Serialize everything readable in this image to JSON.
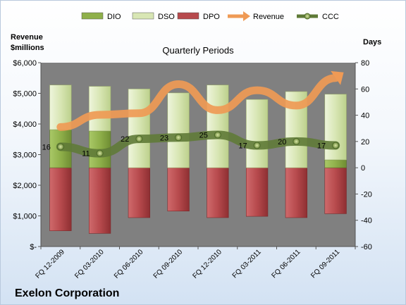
{
  "company": "Exelon Corporation",
  "chart_data": {
    "type": "bar",
    "title": "Quarterly Periods",
    "ylabel_left": "Revenue $millions",
    "ylabel_right": "Days",
    "categories": [
      "FQ 12-2009",
      "FQ 03-2010",
      "FQ 06-2010",
      "FQ 09-2010",
      "FQ 12-2010",
      "FQ 03-2011",
      "FQ 06-2011",
      "FQ 09-2011"
    ],
    "ylim_left": [
      0,
      6000
    ],
    "ylim_right": [
      -60,
      80
    ],
    "left_ticks": [
      "$-",
      "$1,000",
      "$2,000",
      "$3,000",
      "$4,000",
      "$5,000",
      "$6,000"
    ],
    "right_ticks": [
      "-60",
      "-40",
      "-20",
      "0",
      "20",
      "40",
      "60",
      "80"
    ],
    "legend_position": "top",
    "legend": [
      {
        "name": "DIO",
        "kind": "bar",
        "color": "#8fb04a"
      },
      {
        "name": "DSO",
        "kind": "bar",
        "color": "#d8e6b4"
      },
      {
        "name": "DPO",
        "kind": "bar",
        "color": "#b74a4d"
      },
      {
        "name": "Revenue",
        "kind": "arrow",
        "color": "#ef9a55"
      },
      {
        "name": "CCC",
        "kind": "line-marker",
        "color": "#5f7a37"
      }
    ],
    "series": [
      {
        "name": "DIO",
        "axis": "right",
        "values": [
          29,
          28,
          0,
          0,
          0,
          0,
          0,
          6
        ]
      },
      {
        "name": "DSO",
        "axis": "right",
        "values": [
          34,
          34,
          60,
          57,
          63,
          52,
          58,
          50
        ]
      },
      {
        "name": "DPO",
        "axis": "right",
        "values": [
          -48,
          -50,
          -38,
          -33,
          -38,
          -37,
          -38,
          -35
        ]
      },
      {
        "name": "Revenue",
        "axis": "left",
        "values": [
          3900,
          4300,
          4350,
          5300,
          4450,
          5100,
          4600,
          5500
        ]
      },
      {
        "name": "CCC",
        "axis": "right",
        "values": [
          16,
          11,
          22,
          23,
          25,
          17,
          20,
          17
        ]
      }
    ],
    "data_labels": [
      "16",
      "11",
      "22",
      "23",
      "25",
      "17",
      "20",
      "17"
    ],
    "colors": {
      "dio": "#8fb04a",
      "dso": "#d8e6b4",
      "dpo": "#b74a4d",
      "revenue": "#ef9a55",
      "ccc": "#5f7a37",
      "plot_bg": "#808080"
    }
  }
}
